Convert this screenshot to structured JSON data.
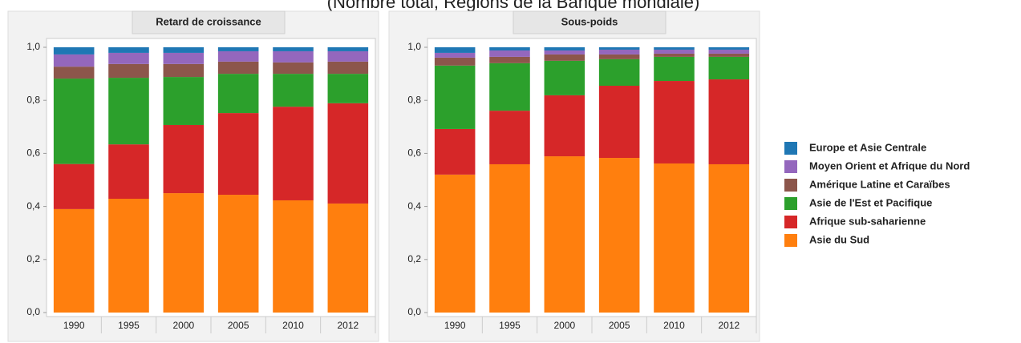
{
  "title": "(Nombre total, Régions de la Banque mondiale)",
  "chart_data": [
    {
      "type": "stacked-bar",
      "title": "Retard de croissance",
      "categories": [
        "1990",
        "1995",
        "2000",
        "2005",
        "2010",
        "2012"
      ],
      "ylim": [
        0,
        1
      ],
      "yticks": [
        {
          "value": 0,
          "label": "0,0"
        },
        {
          "value": 0.2,
          "label": "0,2"
        },
        {
          "value": 0.4,
          "label": "0,4"
        },
        {
          "value": 0.6,
          "label": "0,6"
        },
        {
          "value": 0.8,
          "label": "0,8"
        },
        {
          "value": 1,
          "label": "1,0"
        }
      ],
      "series": [
        {
          "name": "Asie du Sud",
          "color": "#ff7f0e",
          "values": [
            0.39,
            0.429,
            0.45,
            0.444,
            0.423,
            0.411
          ]
        },
        {
          "name": "Afrique sub-saharienne",
          "color": "#d62728",
          "values": [
            0.17,
            0.205,
            0.257,
            0.308,
            0.353,
            0.378
          ]
        },
        {
          "name": "Asie de l'Est et Pacifique",
          "color": "#2ca02c",
          "values": [
            0.322,
            0.251,
            0.181,
            0.148,
            0.124,
            0.111
          ]
        },
        {
          "name": "Amérique Latine et Caraïbes",
          "color": "#8c564b",
          "values": [
            0.045,
            0.052,
            0.049,
            0.046,
            0.043,
            0.046
          ]
        },
        {
          "name": "Moyen Orient et Afrique du Nord",
          "color": "#9467bd",
          "values": [
            0.046,
            0.042,
            0.042,
            0.039,
            0.042,
            0.039
          ]
        },
        {
          "name": "Europe et Asie Centrale",
          "color": "#1f77b4",
          "values": [
            0.027,
            0.021,
            0.021,
            0.015,
            0.015,
            0.015
          ]
        }
      ]
    },
    {
      "type": "stacked-bar",
      "title": "Sous-poids",
      "categories": [
        "1990",
        "1995",
        "2000",
        "2005",
        "2010",
        "2012"
      ],
      "ylim": [
        0,
        1
      ],
      "yticks": [
        {
          "value": 0,
          "label": "0,0"
        },
        {
          "value": 0.2,
          "label": "0,2"
        },
        {
          "value": 0.4,
          "label": "0,4"
        },
        {
          "value": 0.6,
          "label": "0,6"
        },
        {
          "value": 0.8,
          "label": "0,8"
        },
        {
          "value": 1,
          "label": "1,0"
        }
      ],
      "series": [
        {
          "color": "#ff7f0e",
          "values": [
            0.52,
            0.559,
            0.589,
            0.583,
            0.562,
            0.559
          ]
        },
        {
          "color": "#d62728",
          "values": [
            0.172,
            0.202,
            0.23,
            0.272,
            0.311,
            0.32
          ]
        },
        {
          "color": "#2ca02c",
          "values": [
            0.239,
            0.179,
            0.13,
            0.1,
            0.091,
            0.085
          ]
        },
        {
          "color": "#8c564b",
          "values": [
            0.03,
            0.024,
            0.024,
            0.018,
            0.012,
            0.012
          ]
        },
        {
          "color": "#9467bd",
          "values": [
            0.018,
            0.024,
            0.015,
            0.018,
            0.015,
            0.015
          ]
        },
        {
          "color": "#1f77b4",
          "values": [
            0.021,
            0.012,
            0.012,
            0.009,
            0.009,
            0.009
          ]
        }
      ]
    }
  ]
}
